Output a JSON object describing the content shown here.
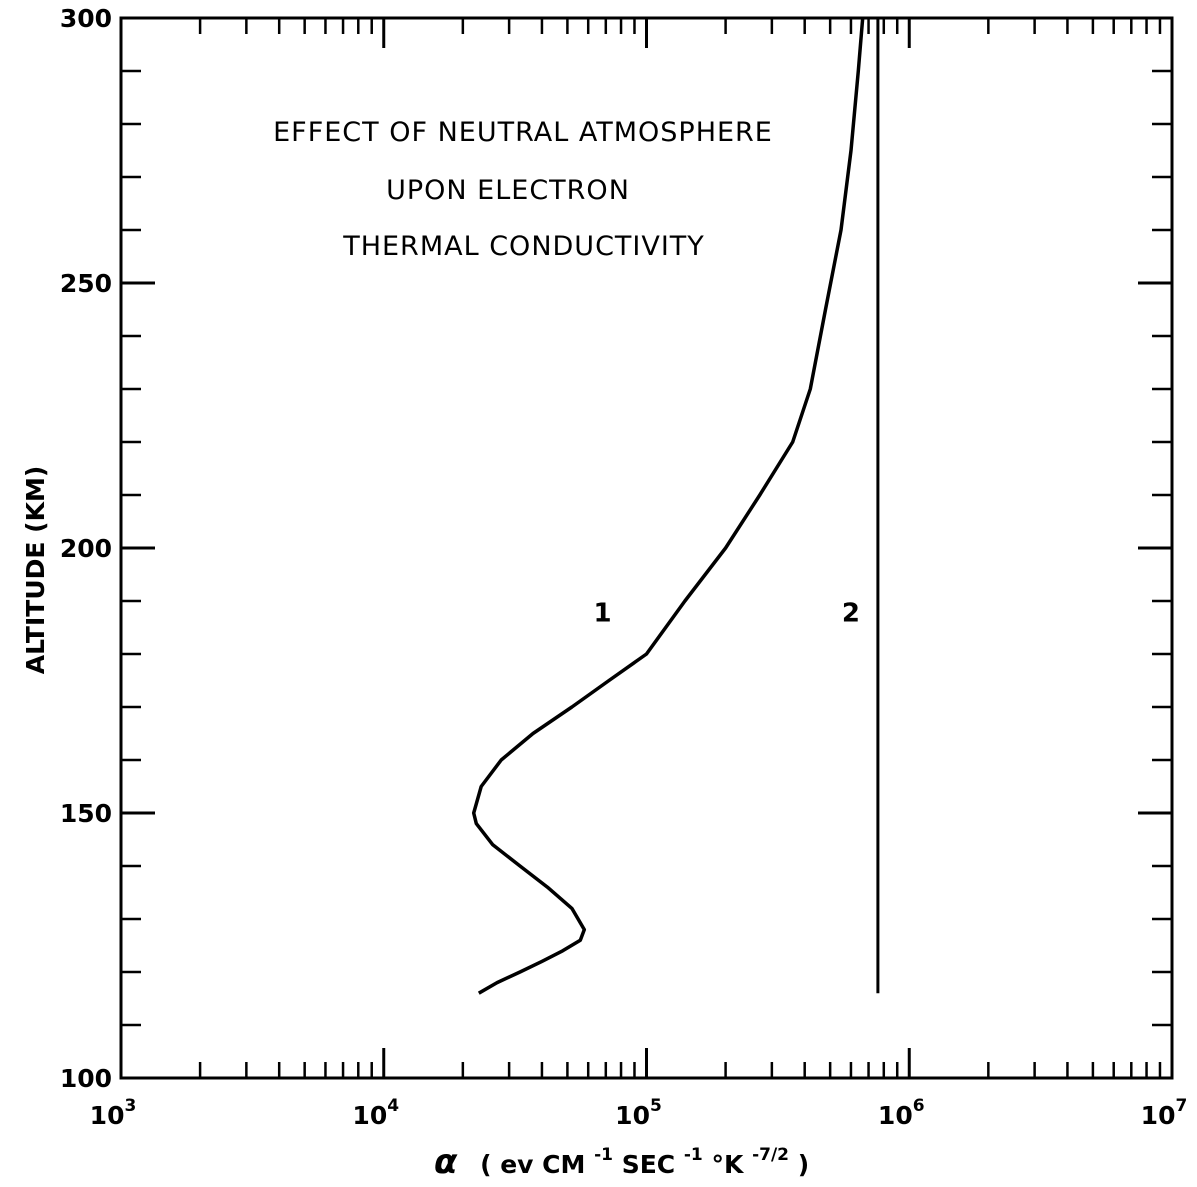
{
  "chart_data": {
    "type": "line",
    "title_lines": [
      "EFFECT OF NEUTRAL ATMOSPHERE",
      "UPON ELECTRON",
      "THERMAL CONDUCTIVITY"
    ],
    "xlabel": {
      "symbol": "α",
      "open": "( ev CM",
      "exp1": "-1",
      "mid1": "SEC",
      "exp2": "-1",
      "mid2": "°K",
      "exp3": "-7/2",
      "close": ")"
    },
    "ylabel": "ALTITUDE (KM)",
    "x_scale": "log",
    "xlim": [
      1000,
      10000000
    ],
    "ylim": [
      100,
      300
    ],
    "x_ticks": [
      {
        "value": 1000,
        "base": "10",
        "exp": "3"
      },
      {
        "value": 10000,
        "base": "10",
        "exp": "4"
      },
      {
        "value": 100000,
        "base": "10",
        "exp": "5"
      },
      {
        "value": 1000000,
        "base": "10",
        "exp": "6"
      },
      {
        "value": 10000000,
        "base": "10",
        "exp": "7"
      }
    ],
    "y_ticks": [
      "100",
      "150",
      "200",
      "250",
      "300"
    ],
    "grid": false,
    "series": [
      {
        "name": "1",
        "x": [
          23000,
          27000,
          33000,
          40000,
          48000,
          56000,
          58000,
          52000,
          42000,
          33000,
          26000,
          22500,
          22000,
          23500,
          28000,
          37000,
          52000,
          72000,
          100000,
          140000,
          200000,
          270000,
          360000,
          420000,
          480000,
          550000,
          600000,
          640000,
          665000
        ],
        "y": [
          116,
          118,
          120,
          122,
          124,
          126,
          128,
          132,
          136,
          140,
          144,
          148,
          150,
          155,
          160,
          165,
          170,
          175,
          180,
          190,
          200,
          210,
          220,
          230,
          245,
          260,
          275,
          290,
          300
        ]
      },
      {
        "name": "2",
        "x": [
          760000,
          760000
        ],
        "y": [
          116,
          300
        ]
      }
    ],
    "annotations": [
      {
        "text": "1",
        "x": 68000,
        "y": 188
      },
      {
        "text": "2",
        "x": 600000,
        "y": 188
      }
    ]
  }
}
